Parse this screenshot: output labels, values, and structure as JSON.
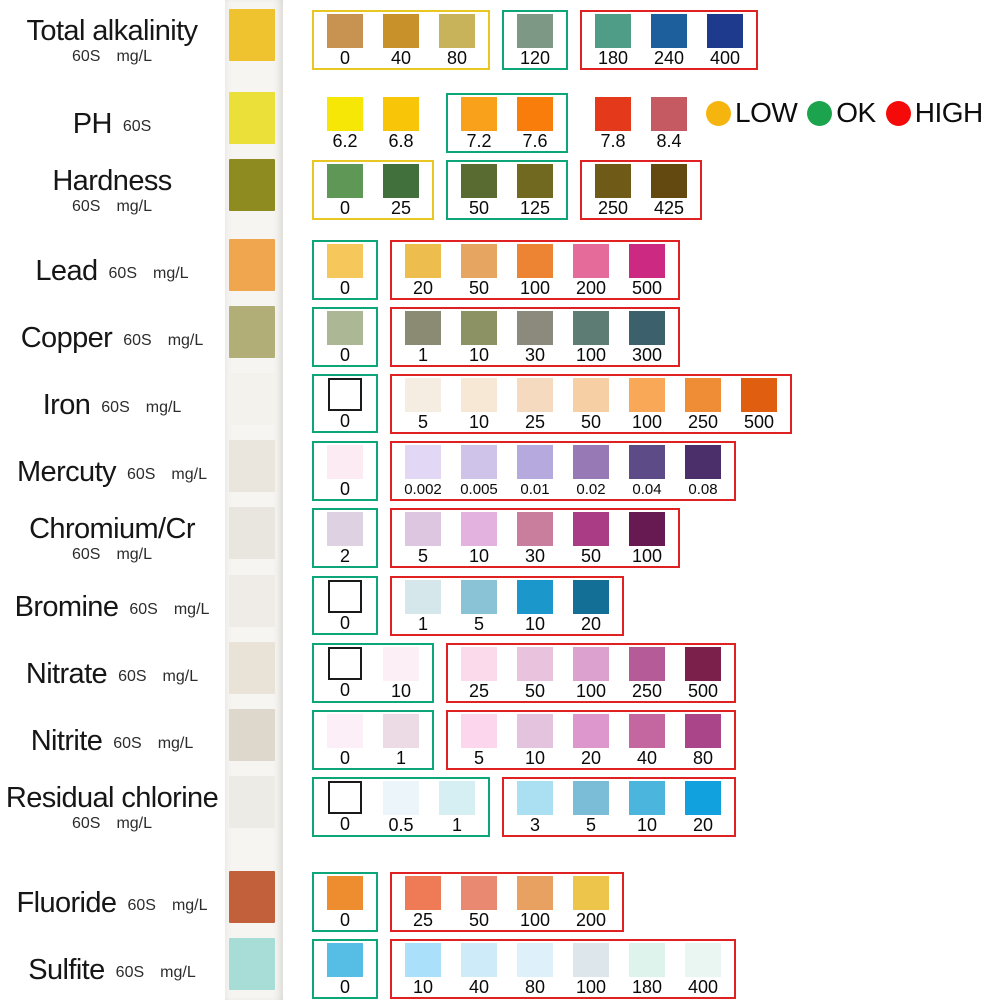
{
  "chart_data": {
    "type": "table",
    "description": "Water quality test strip color comparison chart",
    "legend": [
      {
        "label": "LOW",
        "color": "#F6B40E"
      },
      {
        "label": "OK",
        "color": "#1CA34D"
      },
      {
        "label": "HIGH",
        "color": "#F50A0A"
      }
    ],
    "zone_border_colors": {
      "low": "#E9C722",
      "ok": "#0CA678",
      "high": "#DF2121",
      "none": "transparent"
    },
    "rows": [
      {
        "name": "Total alkalinity",
        "time": "60S",
        "unit": "mg/L",
        "sublabel_below": true,
        "strip_pad_color": "#EFC22F",
        "groups": [
          {
            "zone": "low",
            "swatches": [
              {
                "value": "0",
                "color": "#C89350"
              },
              {
                "value": "40",
                "color": "#C8912A"
              },
              {
                "value": "80",
                "color": "#C8B35A"
              }
            ]
          },
          {
            "zone": "ok",
            "swatches": [
              {
                "value": "120",
                "color": "#7E9886"
              }
            ]
          },
          {
            "zone": "high",
            "swatches": [
              {
                "value": "180",
                "color": "#4F9C87"
              },
              {
                "value": "240",
                "color": "#1D5E9C"
              },
              {
                "value": "400",
                "color": "#1E3A8C"
              }
            ]
          }
        ]
      },
      {
        "name": "PH",
        "time": "60S",
        "unit": "",
        "sublabel_below": false,
        "strip_pad_color": "#EBDF3A",
        "groups": [
          {
            "zone": "none",
            "swatches": [
              {
                "value": "6.2",
                "color": "#F7E707"
              },
              {
                "value": "6.8",
                "color": "#F8C508"
              }
            ]
          },
          {
            "zone": "ok",
            "swatches": [
              {
                "value": "7.2",
                "color": "#F9A11B"
              },
              {
                "value": "7.6",
                "color": "#F87D0A"
              }
            ]
          },
          {
            "zone": "none",
            "swatches": [
              {
                "value": "7.8",
                "color": "#E43A1B"
              },
              {
                "value": "8.4",
                "color": "#C55A63"
              }
            ]
          }
        ]
      },
      {
        "name": "Hardness",
        "time": "60S",
        "unit": "mg/L",
        "sublabel_below": true,
        "strip_pad_color": "#8E8B21",
        "groups": [
          {
            "zone": "low",
            "swatches": [
              {
                "value": "0",
                "color": "#5F9757"
              },
              {
                "value": "25",
                "color": "#41703C"
              }
            ]
          },
          {
            "zone": "ok",
            "swatches": [
              {
                "value": "50",
                "color": "#5A6B31"
              },
              {
                "value": "125",
                "color": "#70691F"
              }
            ]
          },
          {
            "zone": "high",
            "swatches": [
              {
                "value": "250",
                "color": "#6F5A18"
              },
              {
                "value": "425",
                "color": "#63480F"
              }
            ]
          }
        ]
      },
      {
        "name": "Lead",
        "time": "60S",
        "unit": "mg/L",
        "sublabel_below": false,
        "strip_pad_color": "#EFA64F",
        "groups": [
          {
            "zone": "ok",
            "swatches": [
              {
                "value": "0",
                "color": "#F6C85C"
              }
            ]
          },
          {
            "zone": "high",
            "swatches": [
              {
                "value": "20",
                "color": "#EDBD4D"
              },
              {
                "value": "50",
                "color": "#E7A562"
              },
              {
                "value": "100",
                "color": "#EC8434"
              },
              {
                "value": "200",
                "color": "#E56B9B"
              },
              {
                "value": "500",
                "color": "#CC2A82"
              }
            ]
          }
        ]
      },
      {
        "name": "Copper",
        "time": "60S",
        "unit": "mg/L",
        "sublabel_below": false,
        "strip_pad_color": "#B2AE78",
        "groups": [
          {
            "zone": "ok",
            "swatches": [
              {
                "value": "0",
                "color": "#ABB795"
              }
            ]
          },
          {
            "zone": "high",
            "swatches": [
              {
                "value": "1",
                "color": "#8B8B74"
              },
              {
                "value": "10",
                "color": "#8C9263"
              },
              {
                "value": "30",
                "color": "#8C8A7C"
              },
              {
                "value": "100",
                "color": "#5D7C74"
              },
              {
                "value": "300",
                "color": "#3C616C"
              }
            ]
          }
        ]
      },
      {
        "name": "Iron",
        "time": "60S",
        "unit": "mg/L",
        "sublabel_below": false,
        "strip_pad_color": "#F4F2ED",
        "groups": [
          {
            "zone": "ok",
            "swatches": [
              {
                "value": "0",
                "color": "#FFFFFF",
                "outlined": true
              }
            ]
          },
          {
            "zone": "high",
            "swatches": [
              {
                "value": "5",
                "color": "#F6EDE2"
              },
              {
                "value": "10",
                "color": "#F7E7D5"
              },
              {
                "value": "25",
                "color": "#F6DABF"
              },
              {
                "value": "50",
                "color": "#F6CFA4"
              },
              {
                "value": "100",
                "color": "#F8A857"
              },
              {
                "value": "250",
                "color": "#EF8D36"
              },
              {
                "value": "500",
                "color": "#E05E0F"
              }
            ]
          }
        ]
      },
      {
        "name": "Mercuty",
        "time": "60S",
        "unit": "mg/L",
        "sublabel_below": false,
        "strip_pad_color": "#EAE5DD",
        "groups": [
          {
            "zone": "ok",
            "swatches": [
              {
                "value": "0",
                "color": "#FCEBF3"
              }
            ]
          },
          {
            "zone": "high",
            "swatches": [
              {
                "value": "0.002",
                "color": "#E2D7F4"
              },
              {
                "value": "0.005",
                "color": "#CFC3E9"
              },
              {
                "value": "0.01",
                "color": "#B6A9DE"
              },
              {
                "value": "0.02",
                "color": "#9779B5"
              },
              {
                "value": "0.04",
                "color": "#5C4B86"
              },
              {
                "value": "0.08",
                "color": "#4B2F6B"
              }
            ]
          }
        ]
      },
      {
        "name": "Chromium/Cr",
        "time": "60S",
        "unit": "mg/L",
        "sublabel_below": true,
        "strip_pad_color": "#E9E5DF",
        "groups": [
          {
            "zone": "ok",
            "swatches": [
              {
                "value": "2",
                "color": "#DED2E2"
              }
            ]
          },
          {
            "zone": "high",
            "swatches": [
              {
                "value": "5",
                "color": "#DCC6E0"
              },
              {
                "value": "10",
                "color": "#E3B2DE"
              },
              {
                "value": "30",
                "color": "#C87E9C"
              },
              {
                "value": "50",
                "color": "#A93C85"
              },
              {
                "value": "100",
                "color": "#671A52"
              }
            ]
          }
        ]
      },
      {
        "name": "Bromine",
        "time": "60S",
        "unit": "mg/L",
        "sublabel_below": false,
        "strip_pad_color": "#EFECE7",
        "groups": [
          {
            "zone": "ok",
            "swatches": [
              {
                "value": "0",
                "color": "#FFFFFF",
                "outlined": true
              }
            ]
          },
          {
            "zone": "high",
            "swatches": [
              {
                "value": "1",
                "color": "#D6E7EB"
              },
              {
                "value": "5",
                "color": "#8BC3D6"
              },
              {
                "value": "10",
                "color": "#1B97CC"
              },
              {
                "value": "20",
                "color": "#136F96"
              }
            ]
          }
        ]
      },
      {
        "name": "Nitrate",
        "time": "60S",
        "unit": "mg/L",
        "sublabel_below": false,
        "strip_pad_color": "#E9E2D7",
        "groups": [
          {
            "zone": "ok",
            "swatches": [
              {
                "value": "0",
                "color": "#FFFFFF",
                "outlined": true
              },
              {
                "value": "10",
                "color": "#FDEFF6"
              }
            ]
          },
          {
            "zone": "high",
            "swatches": [
              {
                "value": "25",
                "color": "#FBDAEB"
              },
              {
                "value": "50",
                "color": "#E9C3DE"
              },
              {
                "value": "100",
                "color": "#DDA1CF"
              },
              {
                "value": "250",
                "color": "#B55B97"
              },
              {
                "value": "500",
                "color": "#7B1F4B"
              }
            ]
          }
        ]
      },
      {
        "name": "Nitrite",
        "time": "60S",
        "unit": "mg/L",
        "sublabel_below": false,
        "strip_pad_color": "#DED7CC",
        "groups": [
          {
            "zone": "ok",
            "swatches": [
              {
                "value": "0",
                "color": "#FDEFF8"
              },
              {
                "value": "1",
                "color": "#ECDAE5"
              }
            ]
          },
          {
            "zone": "high",
            "swatches": [
              {
                "value": "5",
                "color": "#FBD6EC"
              },
              {
                "value": "10",
                "color": "#E4C3DE"
              },
              {
                "value": "20",
                "color": "#DD97CD"
              },
              {
                "value": "40",
                "color": "#C467A1"
              },
              {
                "value": "80",
                "color": "#AA4589"
              }
            ]
          }
        ]
      },
      {
        "name": "Residual chlorine",
        "time": "60S",
        "unit": "mg/L",
        "sublabel_below": true,
        "strip_pad_color": "#EDEBE5",
        "groups": [
          {
            "zone": "ok",
            "swatches": [
              {
                "value": "0",
                "color": "#FFFFFF",
                "outlined": true
              },
              {
                "value": "0.5",
                "color": "#EBF5FA"
              },
              {
                "value": "1",
                "color": "#D6EFF3"
              }
            ]
          },
          {
            "zone": "high",
            "swatches": [
              {
                "value": "3",
                "color": "#ABE0F3"
              },
              {
                "value": "5",
                "color": "#7BBDD6"
              },
              {
                "value": "10",
                "color": "#4BB5DE"
              },
              {
                "value": "20",
                "color": "#11A1DE"
              }
            ]
          }
        ]
      },
      {
        "name": "Fluoride",
        "time": "60S",
        "unit": "mg/L",
        "sublabel_below": false,
        "strip_pad_color": "#C2603C",
        "groups": [
          {
            "zone": "ok",
            "swatches": [
              {
                "value": "0",
                "color": "#EE8D2F"
              }
            ]
          },
          {
            "zone": "high",
            "swatches": [
              {
                "value": "25",
                "color": "#EE7B56"
              },
              {
                "value": "50",
                "color": "#E98971"
              },
              {
                "value": "100",
                "color": "#E9A161"
              },
              {
                "value": "200",
                "color": "#EEC54B"
              }
            ]
          }
        ]
      },
      {
        "name": "Sulfite",
        "time": "60S",
        "unit": "mg/L",
        "sublabel_below": false,
        "strip_pad_color": "#A7DDD6",
        "groups": [
          {
            "zone": "ok",
            "swatches": [
              {
                "value": "0",
                "color": "#56BDE5"
              }
            ]
          },
          {
            "zone": "high",
            "swatches": [
              {
                "value": "10",
                "color": "#ABE0FB"
              },
              {
                "value": "40",
                "color": "#CDEBF9"
              },
              {
                "value": "80",
                "color": "#DEF0F9"
              },
              {
                "value": "100",
                "color": "#DDE7EB"
              },
              {
                "value": "180",
                "color": "#DEF3EB"
              },
              {
                "value": "400",
                "color": "#E9F6F1"
              }
            ]
          }
        ]
      }
    ]
  }
}
